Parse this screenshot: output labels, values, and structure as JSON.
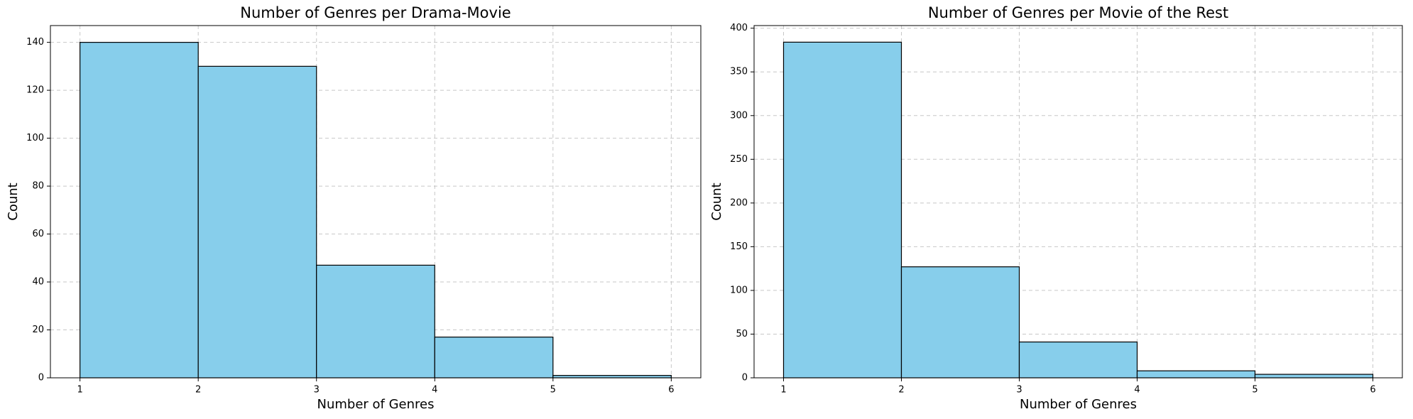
{
  "chart_data": [
    {
      "type": "histogram",
      "title": "Number of Genres per Drama-Movie",
      "xlabel": "Number of Genres",
      "ylabel": "Count",
      "bins": [
        1,
        2,
        3,
        4,
        5,
        6
      ],
      "values": [
        140,
        130,
        47,
        17,
        1
      ],
      "color": "#87ceeb",
      "edgecolor": "#000000",
      "xlim": [
        0.75,
        6.25
      ],
      "xticks": [
        1,
        2,
        3,
        4,
        5,
        6
      ],
      "ylim": [
        0,
        147
      ],
      "yticks": [
        0,
        20,
        40,
        60,
        80,
        100,
        120,
        140
      ],
      "grid": true
    },
    {
      "type": "histogram",
      "title": "Number of Genres per Movie of the Rest",
      "xlabel": "Number of Genres",
      "ylabel": "Count",
      "bins": [
        1,
        2,
        3,
        4,
        5,
        6
      ],
      "values": [
        384,
        127,
        41,
        8,
        4
      ],
      "color": "#87ceeb",
      "edgecolor": "#000000",
      "xlim": [
        0.75,
        6.25
      ],
      "xticks": [
        1,
        2,
        3,
        4,
        5,
        6
      ],
      "ylim": [
        0,
        403
      ],
      "yticks": [
        0,
        50,
        100,
        150,
        200,
        250,
        300,
        350,
        400
      ],
      "grid": true
    }
  ]
}
